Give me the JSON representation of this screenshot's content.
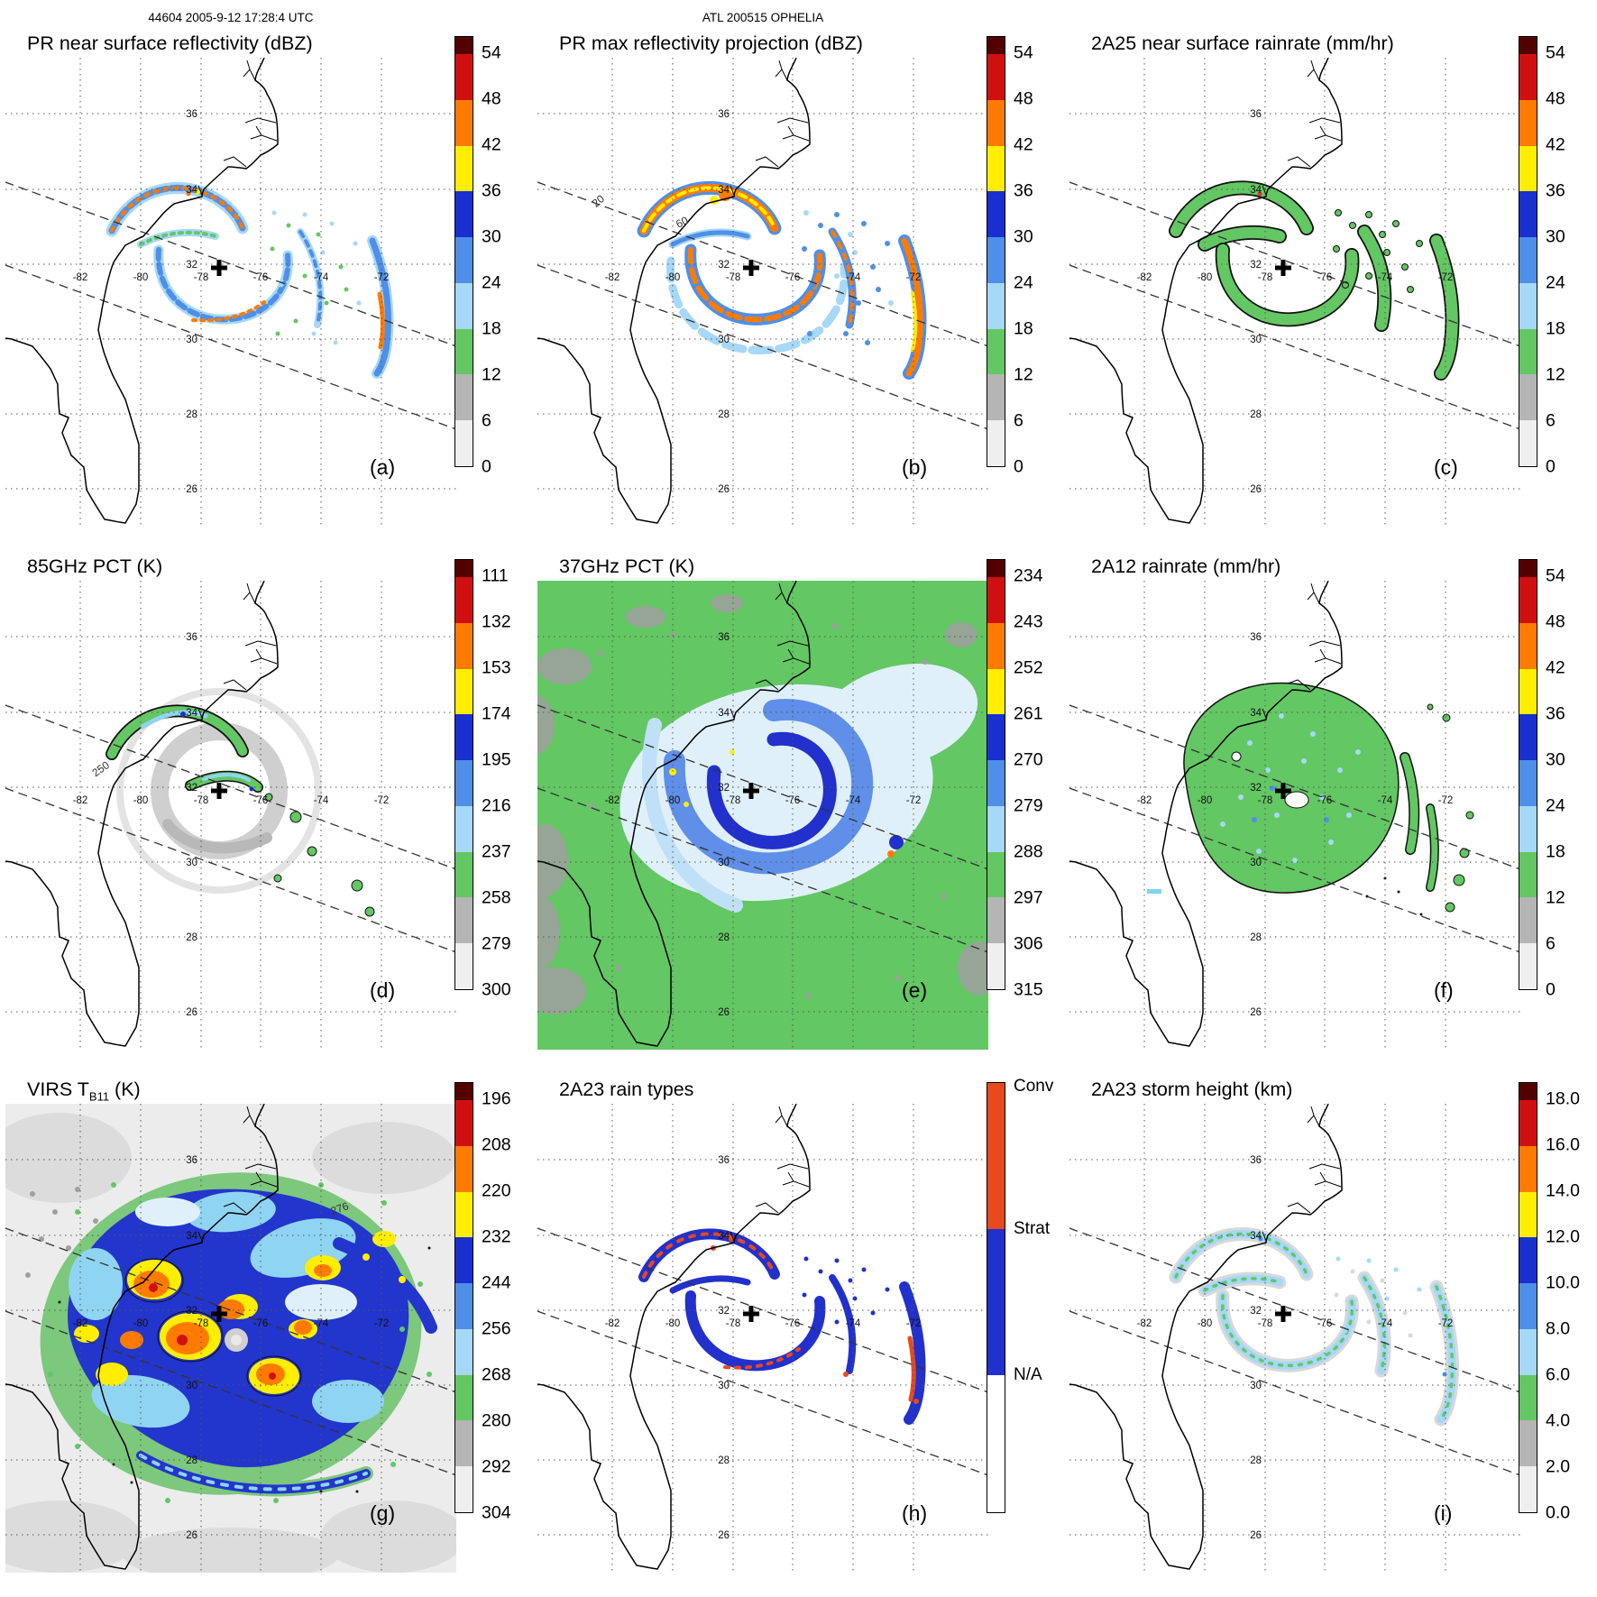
{
  "header": {
    "left": "44604 2005-9-12 17:28:4 UTC",
    "center": "ATL 200515 OPHELIA"
  },
  "map": {
    "lon_labels": [
      "-82",
      "-80",
      "-78",
      "-76",
      "-74",
      "-72"
    ],
    "lat_labels": [
      "36",
      "34",
      "32",
      "30",
      "28",
      "26"
    ]
  },
  "palette": {
    "cap": "#550000",
    "seq": [
      "#d01010",
      "#ff7b00",
      "#ffee00",
      "#1a2fd0",
      "#4f8fe8",
      "#a6d8f7",
      "#63c763",
      "#b5b5b5",
      "#efefef"
    ],
    "raintype": {
      "conv": "#e8491d",
      "strat": "#2230cc",
      "na": "#ffffff"
    }
  },
  "panels": [
    {
      "letter": "(a)",
      "title": "PR near surface reflectivity (dBZ)",
      "field": "pr_a",
      "colorbar": {
        "type": "seq",
        "ticks": [
          "54",
          "48",
          "42",
          "36",
          "30",
          "24",
          "18",
          "12",
          "6",
          "0"
        ]
      }
    },
    {
      "letter": "(b)",
      "title": "PR max reflectivity projection (dBZ)",
      "field": "pr_b",
      "colorbar": {
        "type": "seq",
        "ticks": [
          "54",
          "48",
          "42",
          "36",
          "30",
          "24",
          "18",
          "12",
          "6",
          "0"
        ]
      },
      "annotations": [
        {
          "text": "20"
        },
        {
          "text": "60"
        }
      ]
    },
    {
      "letter": "(c)",
      "title": "2A25 near surface rainrate (mm/hr)",
      "field": "rr_c",
      "colorbar": {
        "type": "seq",
        "ticks": [
          "54",
          "48",
          "42",
          "36",
          "30",
          "24",
          "18",
          "12",
          "6",
          "0"
        ]
      }
    },
    {
      "letter": "(d)",
      "title": "85GHz PCT (K)",
      "field": "pct85",
      "colorbar": {
        "type": "seq",
        "ticks": [
          "111",
          "132",
          "153",
          "174",
          "195",
          "216",
          "237",
          "258",
          "279",
          "300"
        ]
      },
      "annotations": [
        {
          "text": "250"
        }
      ]
    },
    {
      "letter": "(e)",
      "title": "37GHz PCT (K)",
      "field": "pct37",
      "colorbar": {
        "type": "seq",
        "ticks": [
          "234",
          "243",
          "252",
          "261",
          "270",
          "279",
          "288",
          "297",
          "306",
          "315"
        ]
      }
    },
    {
      "letter": "(f)",
      "title": "2A12 rainrate (mm/hr)",
      "field": "rr_f",
      "colorbar": {
        "type": "seq",
        "ticks": [
          "54",
          "48",
          "42",
          "36",
          "30",
          "24",
          "18",
          "12",
          "6",
          "0"
        ]
      }
    },
    {
      "letter": "(g)",
      "title_pre": "VIRS T",
      "title_sub": "B11",
      "title_post": " (K)",
      "field": "virs",
      "colorbar": {
        "type": "seq",
        "ticks": [
          "196",
          "208",
          "220",
          "232",
          "244",
          "256",
          "268",
          "280",
          "292",
          "304"
        ]
      },
      "annotations": [
        {
          "text": "276"
        }
      ]
    },
    {
      "letter": "(h)",
      "title": "2A23 rain types",
      "field": "rtype",
      "colorbar": {
        "type": "raintype",
        "labels": [
          "Conv",
          "Strat",
          "N/A"
        ]
      }
    },
    {
      "letter": "(i)",
      "title": "2A23 storm height (km)",
      "field": "height",
      "colorbar": {
        "type": "seq",
        "ticks": [
          "18.0",
          "16.0",
          "14.0",
          "12.0",
          "10.0",
          "8.0",
          "6.0",
          "4.0",
          "2.0",
          "0.0"
        ]
      }
    }
  ],
  "chart_data": [
    {
      "type": "heatmap",
      "panel_label": "(a)",
      "title": "PR near surface reflectivity (dBZ)",
      "x_ticks": [
        -82,
        -80,
        -78,
        -76,
        -74,
        -72
      ],
      "y_ticks": [
        36,
        34,
        32,
        30,
        28,
        26
      ],
      "colorbar_ticks": [
        54,
        48,
        42,
        36,
        30,
        24,
        18,
        12,
        6,
        0
      ]
    },
    {
      "type": "heatmap",
      "panel_label": "(b)",
      "title": "PR max reflectivity projection (dBZ)",
      "x_ticks": [
        -82,
        -80,
        -78,
        -76,
        -74,
        -72
      ],
      "y_ticks": [
        36,
        34,
        32,
        30,
        28,
        26
      ],
      "colorbar_ticks": [
        54,
        48,
        42,
        36,
        30,
        24,
        18,
        12,
        6,
        0
      ]
    },
    {
      "type": "heatmap",
      "panel_label": "(c)",
      "title": "2A25 near surface rainrate (mm/hr)",
      "x_ticks": [
        -82,
        -80,
        -78,
        -76,
        -74,
        -72
      ],
      "y_ticks": [
        36,
        34,
        32,
        30,
        28,
        26
      ],
      "colorbar_ticks": [
        54,
        48,
        42,
        36,
        30,
        24,
        18,
        12,
        6,
        0
      ]
    },
    {
      "type": "heatmap",
      "panel_label": "(d)",
      "title": "85GHz PCT (K)",
      "x_ticks": [
        -82,
        -80,
        -78,
        -76,
        -74,
        -72
      ],
      "y_ticks": [
        36,
        34,
        32,
        30,
        28,
        26
      ],
      "colorbar_ticks": [
        111,
        132,
        153,
        174,
        195,
        216,
        237,
        258,
        279,
        300
      ]
    },
    {
      "type": "heatmap",
      "panel_label": "(e)",
      "title": "37GHz PCT (K)",
      "x_ticks": [
        -82,
        -80,
        -78,
        -76,
        -74,
        -72
      ],
      "y_ticks": [
        36,
        34,
        32,
        30,
        28,
        26
      ],
      "colorbar_ticks": [
        234,
        243,
        252,
        261,
        270,
        279,
        288,
        297,
        306,
        315
      ]
    },
    {
      "type": "heatmap",
      "panel_label": "(f)",
      "title": "2A12 rainrate (mm/hr)",
      "x_ticks": [
        -82,
        -80,
        -78,
        -76,
        -74,
        -72
      ],
      "y_ticks": [
        36,
        34,
        32,
        30,
        28,
        26
      ],
      "colorbar_ticks": [
        54,
        48,
        42,
        36,
        30,
        24,
        18,
        12,
        6,
        0
      ]
    },
    {
      "type": "heatmap",
      "panel_label": "(g)",
      "title": "VIRS TB11 (K)",
      "x_ticks": [
        -82,
        -80,
        -78,
        -76,
        -74,
        -72
      ],
      "y_ticks": [
        36,
        34,
        32,
        30,
        28,
        26
      ],
      "colorbar_ticks": [
        196,
        208,
        220,
        232,
        244,
        256,
        268,
        280,
        292,
        304
      ]
    },
    {
      "type": "heatmap",
      "panel_label": "(h)",
      "title": "2A23 rain types",
      "x_ticks": [
        -82,
        -80,
        -78,
        -76,
        -74,
        -72
      ],
      "y_ticks": [
        36,
        34,
        32,
        30,
        28,
        26
      ],
      "categories": [
        "Conv",
        "Strat",
        "N/A"
      ]
    },
    {
      "type": "heatmap",
      "panel_label": "(i)",
      "title": "2A23 storm height (km)",
      "x_ticks": [
        -82,
        -80,
        -78,
        -76,
        -74,
        -72
      ],
      "y_ticks": [
        36,
        34,
        32,
        30,
        28,
        26
      ],
      "colorbar_ticks": [
        18.0,
        16.0,
        14.0,
        12.0,
        10.0,
        8.0,
        6.0,
        4.0,
        2.0,
        0.0
      ]
    }
  ]
}
